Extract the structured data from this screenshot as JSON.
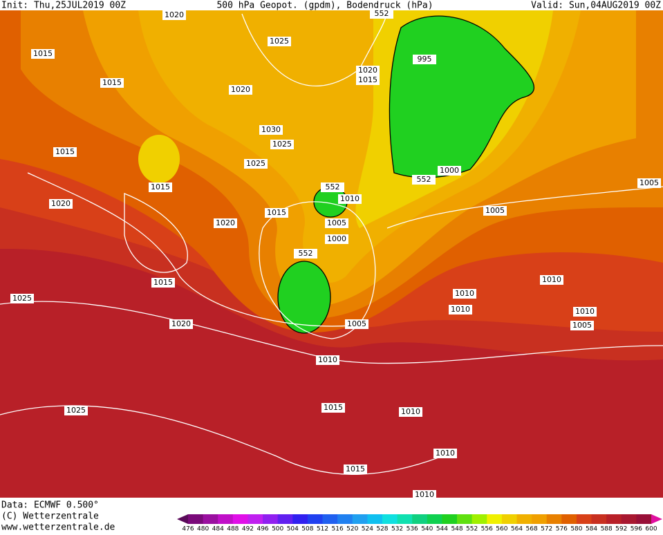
{
  "header": {
    "init": "Init: Thu,25JUL2019 00Z",
    "title": "500 hPa Geopot. (gpdm), Bodendruck (hPa)",
    "valid": "Valid: Sun,04AUG2019 00Z"
  },
  "footer": {
    "data": "Data: ECMWF  0.500°",
    "copyright": "(C) Wetterzentrale",
    "url": "www.wetterzentrale.de"
  },
  "contour_labels": [
    1020,
    552,
    1025,
    1015,
    995,
    1020,
    1015,
    1015,
    1020,
    1030,
    1025,
    1015,
    1025,
    1000,
    552,
    1005,
    552,
    1015,
    1010,
    1020,
    1015,
    1005,
    1020,
    1005,
    1000,
    552,
    1015,
    1010,
    1025,
    1010,
    1010,
    1010,
    1005,
    1020,
    1005,
    1010,
    1015,
    1025,
    1010,
    1010,
    1015,
    1010
  ],
  "colorbar": {
    "levels": [
      476,
      480,
      484,
      488,
      492,
      496,
      500,
      504,
      508,
      512,
      516,
      520,
      524,
      528,
      532,
      536,
      540,
      544,
      548,
      552,
      556,
      560,
      564,
      568,
      572,
      576,
      580,
      584,
      588,
      592,
      596,
      600
    ],
    "colors": [
      "#5a0a5a",
      "#7a0a7a",
      "#9a10a0",
      "#c010c8",
      "#e010e8",
      "#c020f0",
      "#9020f0",
      "#6020f0",
      "#3020f0",
      "#2040f0",
      "#2060f0",
      "#2080f0",
      "#20a0f0",
      "#10c0f0",
      "#10e0e0",
      "#10e0b0",
      "#10d080",
      "#10d050",
      "#20d020",
      "#60e010",
      "#a0f000",
      "#f0f000",
      "#f0d000",
      "#f0b000",
      "#f0a000",
      "#e88000",
      "#e06000",
      "#d84018",
      "#c83020",
      "#b82028",
      "#a81830",
      "#981038",
      "#e010a0"
    ]
  }
}
